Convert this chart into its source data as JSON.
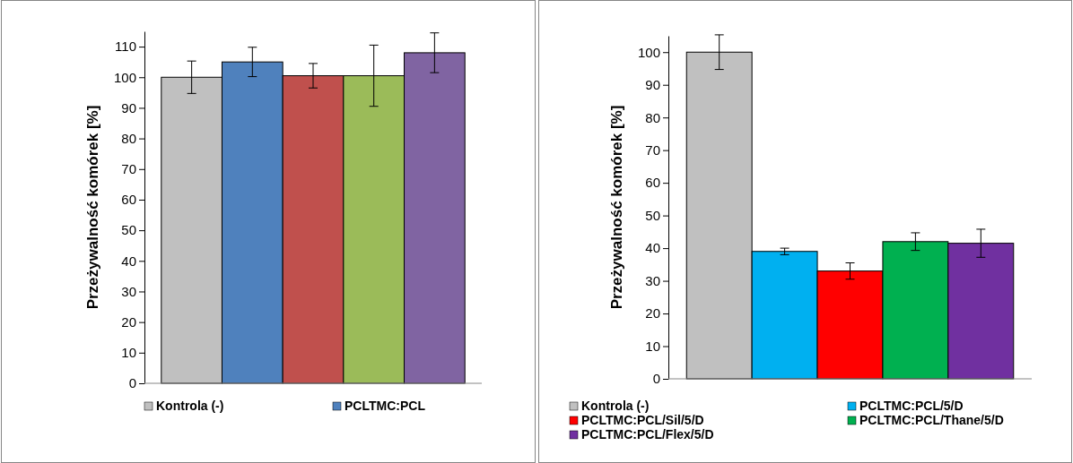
{
  "chart_data": [
    {
      "type": "bar",
      "ylabel": "Przeżywalność komórek [%]",
      "categories": [
        null
      ],
      "ylim": [
        0,
        115
      ],
      "yticks": [
        0,
        10,
        20,
        30,
        40,
        50,
        60,
        70,
        80,
        90,
        100,
        110
      ],
      "legend": "bottom",
      "grid": false,
      "series": [
        {
          "name": "Kontrola (-)",
          "color": "#c0c0c0",
          "values": [
            100
          ],
          "errors": [
            5.3
          ]
        },
        {
          "name": "PCLTMC:PCL",
          "color": "#4f81bd",
          "values": [
            105
          ],
          "errors": [
            4.8
          ]
        },
        {
          "color": "#c0504d",
          "values": [
            100.5
          ],
          "errors": [
            4
          ]
        },
        {
          "color": "#9bbb59",
          "values": [
            100.5
          ],
          "errors": [
            10
          ]
        },
        {
          "color": "#8064a2",
          "values": [
            108
          ],
          "errors": [
            6.5
          ]
        }
      ]
    },
    {
      "type": "bar",
      "ylabel": "Przeżywalność komórek [%]",
      "categories": [
        null
      ],
      "ylim": [
        0,
        105
      ],
      "yticks": [
        0,
        10,
        20,
        30,
        40,
        50,
        60,
        70,
        80,
        90,
        100
      ],
      "legend": "bottom",
      "grid": false,
      "series": [
        {
          "name": "Kontrola (-)",
          "color": "#c0c0c0",
          "values": [
            100
          ],
          "errors": [
            5.3
          ]
        },
        {
          "name": "PCLTMC:PCL/5/D",
          "color": "#00b0f0",
          "values": [
            39
          ],
          "errors": [
            1
          ]
        },
        {
          "name": "PCLTMC:PCL/Sil/5/D",
          "color": "#ff0000",
          "values": [
            33
          ],
          "errors": [
            2.5
          ]
        },
        {
          "name": "PCLTMC:PCL/Thane/5/D",
          "color": "#00b050",
          "values": [
            42
          ],
          "errors": [
            2.7
          ]
        },
        {
          "name": "PCLTMC:PCL/Flex/5/D",
          "color": "#7030a0",
          "values": [
            41.5
          ],
          "errors": [
            4.3
          ]
        }
      ]
    }
  ]
}
